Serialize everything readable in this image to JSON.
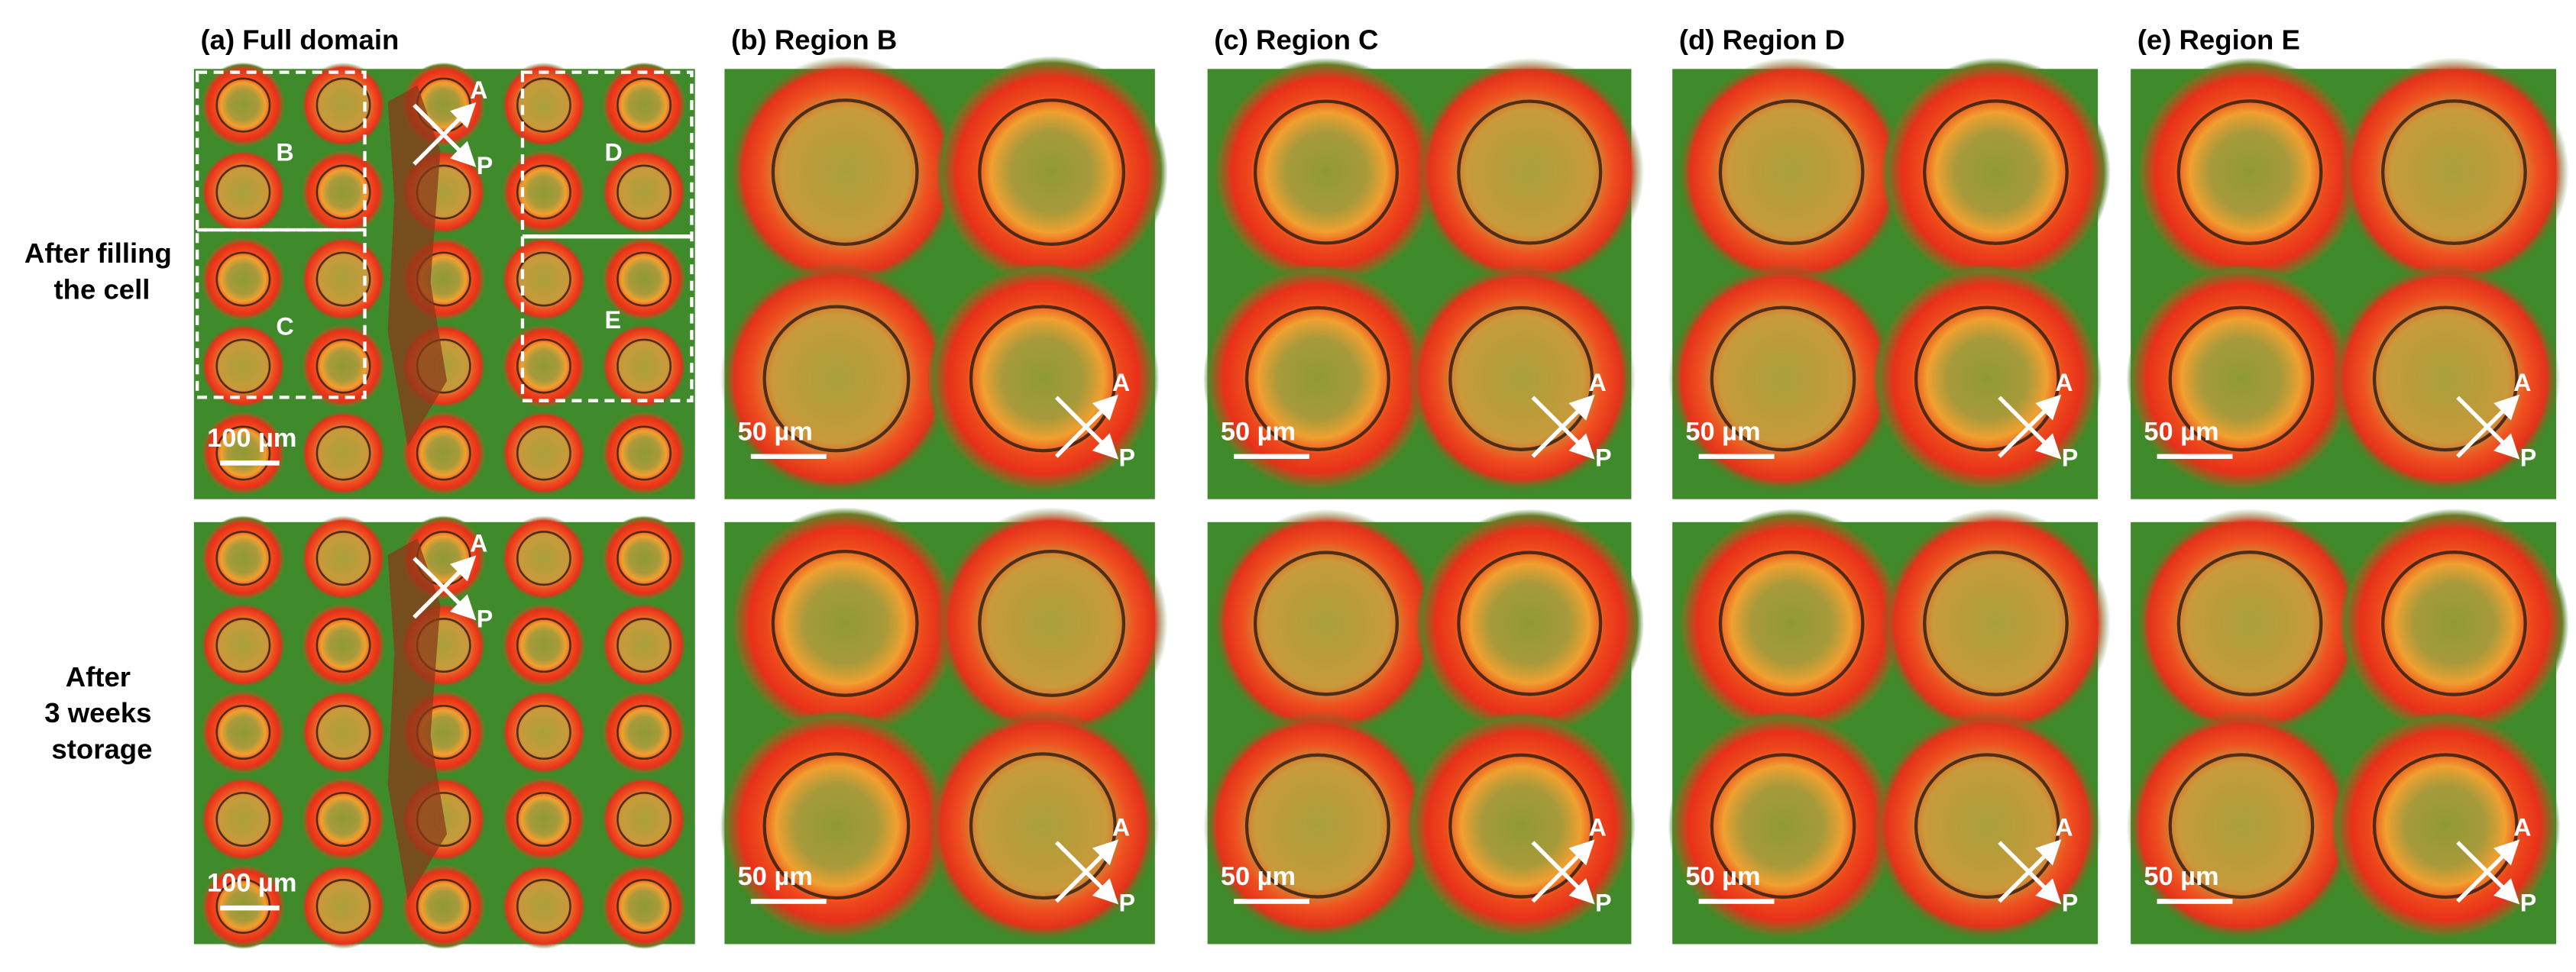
{
  "row_labels": [
    [
      "After filling",
      "the cell"
    ],
    [
      "After",
      "3 weeks",
      "storage"
    ]
  ],
  "polarizer": {
    "analyzer": "A",
    "polarizer": "P"
  },
  "panels": [
    {
      "title": "(a) Full domain",
      "scale_bars": [
        "100 µm",
        "100 µm"
      ],
      "regions": [
        "B",
        "C",
        "D",
        "E"
      ]
    },
    {
      "title": "(b) Region B",
      "scale_bars": [
        "50 µm",
        "50 µm"
      ]
    },
    {
      "title": "(c) Region C",
      "scale_bars": [
        "50 µm",
        "50 µm"
      ]
    },
    {
      "title": "(d) Region D",
      "scale_bars": [
        "50 µm",
        "50 µm"
      ]
    },
    {
      "title": "(e) Region E",
      "scale_bars": [
        "50 µm",
        "50 µm"
      ]
    }
  ]
}
